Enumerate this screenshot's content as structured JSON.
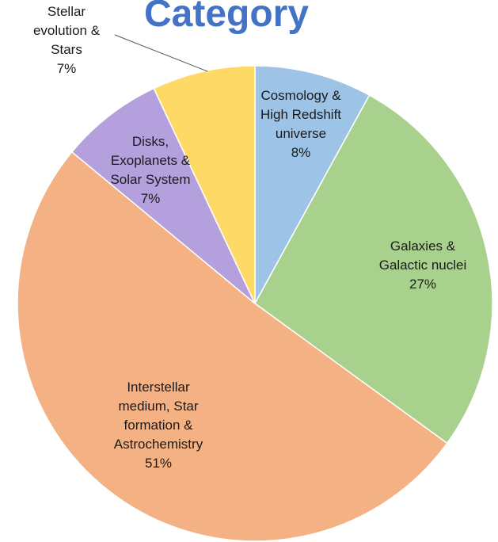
{
  "chart_data": {
    "type": "pie",
    "title": "Category",
    "start_angle_deg": 0,
    "direction": "clockwise",
    "slices": [
      {
        "name": "Cosmology & High Redshift universe",
        "lines": [
          "Cosmology &",
          "High Redshift",
          "universe"
        ],
        "value": 8,
        "label": "8%",
        "color": "#9dc3e6"
      },
      {
        "name": "Galaxies & Galactic nuclei",
        "lines": [
          "Galaxies &",
          "Galactic nuclei"
        ],
        "value": 27,
        "label": "27%",
        "color": "#a9d18e"
      },
      {
        "name": "Interstellar medium, Star formation & Astrochemistry",
        "lines": [
          "Interstellar",
          "medium, Star",
          "formation &",
          "Astrochemistry"
        ],
        "value": 51,
        "label": "51%",
        "color": "#f4b183"
      },
      {
        "name": "Disks, Exoplanets & Solar System",
        "lines": [
          "Disks,",
          "Exoplanets &",
          "Solar System"
        ],
        "value": 7,
        "label": "7%",
        "color": "#b4a0dc"
      },
      {
        "name": "Stellar evolution & Stars",
        "lines": [
          "Stellar",
          "evolution &",
          "Stars"
        ],
        "value": 7,
        "label": "7%",
        "color": "#ffd966"
      }
    ],
    "legend": "none"
  }
}
